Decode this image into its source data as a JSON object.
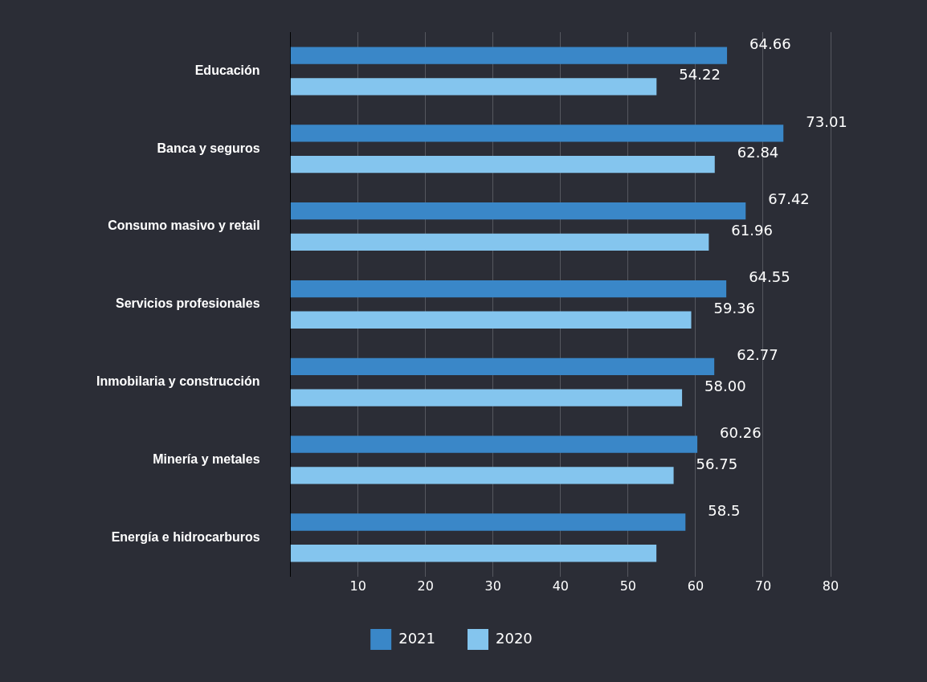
{
  "chart_data": {
    "type": "bar",
    "orientation": "horizontal",
    "categories": [
      "Educación",
      "Banca y seguros",
      "Consumo masivo y retail",
      "Servicios profesionales",
      "Inmobilaria y construcción",
      "Minería y metales",
      "Energía e hidrocarburos"
    ],
    "series": [
      {
        "name": "2021",
        "color": "#3a87c8",
        "values": [
          64.66,
          73.01,
          67.42,
          64.55,
          62.77,
          60.26,
          58.5
        ],
        "value_labels": [
          "64.66",
          "73.01",
          "67.42",
          "64.55",
          "62.77",
          "60.26",
          "58.5"
        ]
      },
      {
        "name": "2020",
        "color": "#84c5ee",
        "values": [
          54.22,
          62.84,
          61.96,
          59.36,
          58.0,
          56.75,
          54.2
        ],
        "value_labels": [
          "54.22",
          "62.84",
          "61.96",
          "59.36",
          "58.00",
          "56.75",
          null
        ]
      }
    ],
    "xlim": [
      0,
      80
    ],
    "xticks": [
      10,
      20,
      30,
      40,
      50,
      60,
      70,
      80
    ],
    "grid": "x",
    "legend": "bottom"
  }
}
